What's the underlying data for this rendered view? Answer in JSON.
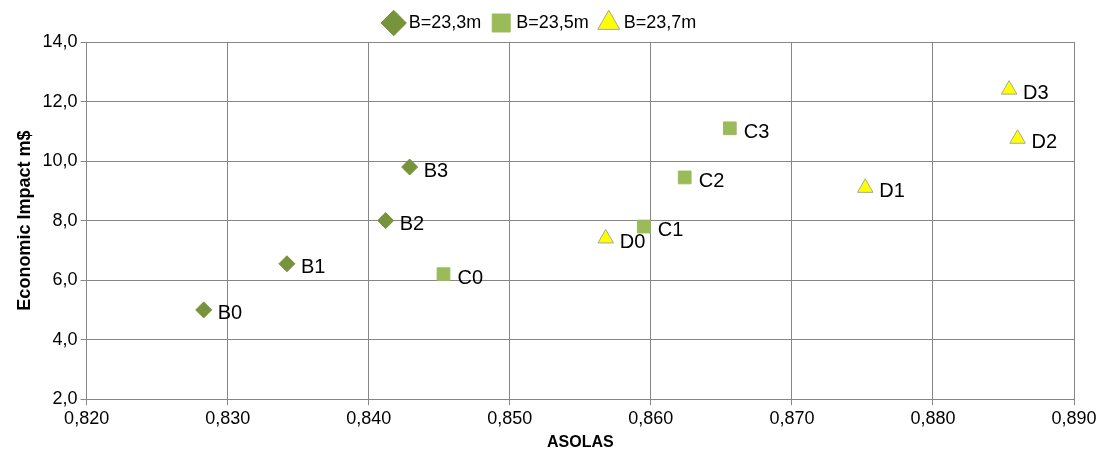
{
  "chart_data": {
    "type": "scatter",
    "xlabel": "ASOLAS",
    "ylabel": "Economic Impact m$",
    "xlim": [
      0.82,
      0.89
    ],
    "xticks": [
      {
        "value": 0.82,
        "label": "0,820"
      },
      {
        "value": 0.83,
        "label": "0,830"
      },
      {
        "value": 0.84,
        "label": "0,840"
      },
      {
        "value": 0.85,
        "label": "0,850"
      },
      {
        "value": 0.86,
        "label": "0,860"
      },
      {
        "value": 0.87,
        "label": "0,870"
      },
      {
        "value": 0.88,
        "label": "0,880"
      },
      {
        "value": 0.89,
        "label": "0,890"
      }
    ],
    "ylim": [
      2,
      14
    ],
    "yticks": [
      {
        "value": 2,
        "label": "2,0"
      },
      {
        "value": 4,
        "label": "4,0"
      },
      {
        "value": 6,
        "label": "6,0"
      },
      {
        "value": 8,
        "label": "8,0"
      },
      {
        "value": 10,
        "label": "10,0"
      },
      {
        "value": 12,
        "label": "12,0"
      },
      {
        "value": 14,
        "label": "14,0"
      }
    ],
    "grid": true,
    "legend": "top",
    "series": [
      {
        "name": "B=23,3m",
        "color": "#77933c",
        "marker": "diamond",
        "x": [
          0.8283,
          0.8342,
          0.8412,
          0.8429
        ],
        "values": [
          5.0,
          6.55,
          8.0,
          9.8
        ]
      },
      {
        "name": "B=23,5m",
        "color": "#9bbb59",
        "marker": "square",
        "x": [
          0.8453,
          0.8595,
          0.8624,
          0.8656
        ],
        "values": [
          6.2,
          7.8,
          9.45,
          11.1
        ]
      },
      {
        "name": "B=23,7m",
        "color": "#ffff00",
        "marker": "triangle",
        "x": [
          0.8568,
          0.8752,
          0.886,
          0.8854
        ],
        "values": [
          7.4,
          9.1,
          10.75,
          12.4
        ]
      }
    ],
    "annotations": [
      {
        "text": "B0",
        "x": 0.8283,
        "y": 5.0
      },
      {
        "text": "B1",
        "x": 0.8342,
        "y": 6.55
      },
      {
        "text": "B2",
        "x": 0.8412,
        "y": 8.0
      },
      {
        "text": "B3",
        "x": 0.8429,
        "y": 9.8
      },
      {
        "text": "C0",
        "x": 0.8453,
        "y": 6.2
      },
      {
        "text": "C1",
        "x": 0.8595,
        "y": 7.8
      },
      {
        "text": "C2",
        "x": 0.8624,
        "y": 9.45
      },
      {
        "text": "C3",
        "x": 0.8656,
        "y": 11.1
      },
      {
        "text": "D0",
        "x": 0.8568,
        "y": 7.4
      },
      {
        "text": "D1",
        "x": 0.8752,
        "y": 9.1
      },
      {
        "text": "D2",
        "x": 0.886,
        "y": 10.75
      },
      {
        "text": "D3",
        "x": 0.8854,
        "y": 12.4
      }
    ]
  }
}
